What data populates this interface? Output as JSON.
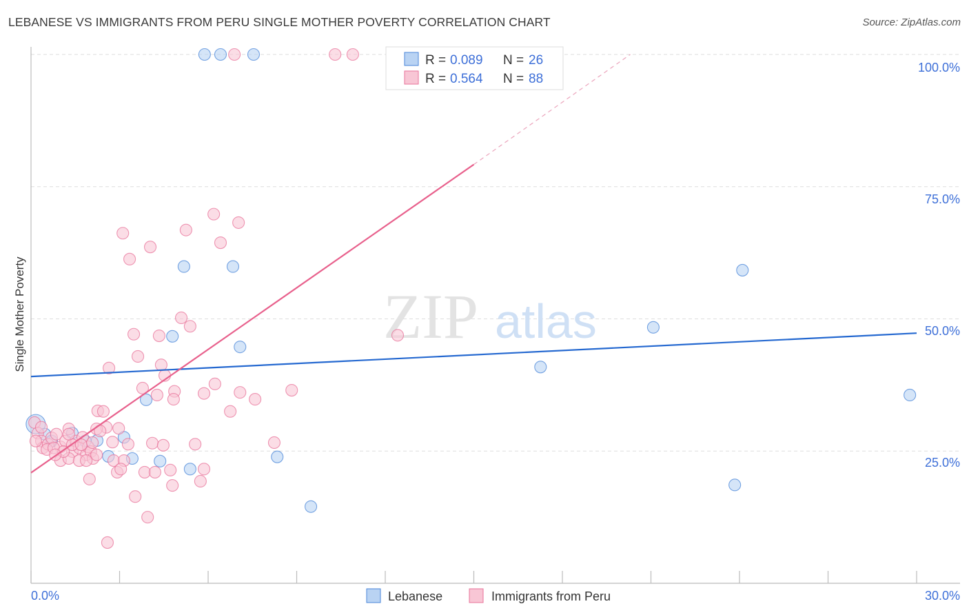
{
  "title": "LEBANESE VS IMMIGRANTS FROM PERU SINGLE MOTHER POVERTY CORRELATION CHART",
  "source": "Source: ZipAtlas.com",
  "watermark": {
    "zip": "ZIP",
    "atlas": "atlas"
  },
  "chart_data": {
    "type": "scatter",
    "title": "LEBANESE VS IMMIGRANTS FROM PERU SINGLE MOTHER POVERTY CORRELATION CHART",
    "xlabel": "",
    "ylabel": "Single Mother Poverty",
    "xlim": [
      0,
      30
    ],
    "ylim": [
      0,
      100
    ],
    "x_tick_labels": [
      "0.0%",
      "30.0%"
    ],
    "y_ticks": [
      25,
      50,
      75,
      100
    ],
    "y_tick_labels": [
      "25.0%",
      "50.0%",
      "75.0%",
      "100.0%"
    ],
    "grid": true,
    "legend_placement": "top-center",
    "legend_stats": [
      {
        "r_label": "R = ",
        "r": "0.089",
        "n_label": "N = ",
        "n": "26"
      },
      {
        "r_label": "R = ",
        "r": "0.564",
        "n_label": "N = ",
        "n": "88"
      }
    ],
    "series": [
      {
        "name": "Lebanese",
        "color": "#4a86d8",
        "fill": "#b9d3f3",
        "trend": {
          "x": [
            0,
            30
          ],
          "y": [
            39.1,
            47.3
          ]
        },
        "points": [
          [
            5.88,
            100
          ],
          [
            6.42,
            100
          ],
          [
            7.54,
            100
          ],
          [
            0.16,
            30.1
          ],
          [
            1.4,
            28.4
          ],
          [
            1.84,
            26.9
          ],
          [
            2.24,
            27.0
          ],
          [
            2.62,
            24.0
          ],
          [
            3.15,
            27.6
          ],
          [
            3.43,
            23.6
          ],
          [
            3.9,
            34.7
          ],
          [
            4.37,
            23.1
          ],
          [
            4.79,
            46.7
          ],
          [
            5.18,
            59.9
          ],
          [
            5.39,
            21.6
          ],
          [
            6.84,
            59.9
          ],
          [
            7.08,
            44.7
          ],
          [
            8.34,
            23.9
          ],
          [
            9.48,
            14.5
          ],
          [
            17.26,
            40.9
          ],
          [
            21.08,
            48.4
          ],
          [
            24.1,
            59.2
          ],
          [
            23.84,
            18.6
          ],
          [
            29.77,
            35.6
          ],
          [
            0.47,
            28.2
          ],
          [
            0.7,
            26.9
          ]
        ]
      },
      {
        "name": "Immigrants from Peru",
        "color": "#e8739a",
        "fill": "#f8c6d5",
        "trend": {
          "x": [
            0,
            15.0
          ],
          "y": [
            20.9,
            79.2
          ],
          "dashed_to": [
            20.3,
            100
          ]
        },
        "points": [
          [
            6.89,
            100
          ],
          [
            10.3,
            100
          ],
          [
            10.9,
            100
          ],
          [
            3.11,
            66.2
          ],
          [
            3.34,
            61.3
          ],
          [
            4.04,
            63.6
          ],
          [
            5.25,
            66.8
          ],
          [
            6.19,
            69.8
          ],
          [
            6.42,
            64.4
          ],
          [
            7.03,
            68.2
          ],
          [
            5.09,
            50.2
          ],
          [
            5.39,
            48.6
          ],
          [
            3.48,
            47.1
          ],
          [
            4.34,
            46.8
          ],
          [
            3.62,
            42.9
          ],
          [
            4.41,
            41.3
          ],
          [
            4.53,
            39.3
          ],
          [
            2.64,
            40.7
          ],
          [
            3.78,
            36.9
          ],
          [
            4.27,
            35.6
          ],
          [
            4.86,
            36.3
          ],
          [
            4.83,
            34.8
          ],
          [
            5.86,
            35.9
          ],
          [
            6.23,
            37.7
          ],
          [
            7.08,
            36.1
          ],
          [
            7.59,
            34.8
          ],
          [
            8.83,
            36.5
          ],
          [
            6.75,
            32.5
          ],
          [
            12.42,
            46.9
          ],
          [
            2.26,
            32.6
          ],
          [
            2.45,
            32.5
          ],
          [
            2.55,
            29.5
          ],
          [
            2.97,
            29.3
          ],
          [
            2.22,
            29.2
          ],
          [
            3.29,
            26.3
          ],
          [
            2.76,
            26.7
          ],
          [
            4.11,
            26.5
          ],
          [
            4.48,
            26.1
          ],
          [
            5.56,
            26.3
          ],
          [
            8.24,
            26.6
          ],
          [
            0.12,
            30.4
          ],
          [
            0.23,
            28.4
          ],
          [
            0.35,
            26.9
          ],
          [
            0.4,
            25.6
          ],
          [
            0.58,
            26.3
          ],
          [
            0.7,
            27.5
          ],
          [
            0.86,
            28.2
          ],
          [
            1.0,
            25.8
          ],
          [
            1.17,
            26.9
          ],
          [
            1.28,
            29.2
          ],
          [
            1.4,
            24.9
          ],
          [
            1.52,
            26.9
          ],
          [
            1.63,
            25.6
          ],
          [
            1.75,
            27.6
          ],
          [
            1.87,
            24.3
          ],
          [
            1.94,
            25.8
          ],
          [
            2.03,
            24.9
          ],
          [
            2.1,
            23.6
          ],
          [
            1.0,
            23.2
          ],
          [
            0.54,
            25.3
          ],
          [
            1.28,
            23.6
          ],
          [
            1.63,
            23.2
          ],
          [
            1.87,
            23.2
          ],
          [
            2.8,
            23.2
          ],
          [
            3.15,
            23.2
          ],
          [
            2.92,
            21.0
          ],
          [
            3.04,
            21.6
          ],
          [
            3.85,
            21.0
          ],
          [
            4.2,
            21.0
          ],
          [
            4.72,
            21.4
          ],
          [
            5.86,
            21.6
          ],
          [
            1.98,
            19.7
          ],
          [
            3.53,
            16.4
          ],
          [
            4.79,
            18.5
          ],
          [
            5.74,
            19.3
          ],
          [
            3.95,
            12.5
          ],
          [
            2.59,
            7.7
          ],
          [
            0.16,
            26.9
          ],
          [
            0.35,
            29.5
          ],
          [
            0.77,
            25.6
          ],
          [
            1.1,
            24.9
          ],
          [
            1.4,
            26.2
          ],
          [
            2.34,
            28.8
          ],
          [
            1.7,
            26.2
          ],
          [
            2.08,
            26.6
          ],
          [
            2.22,
            24.3
          ],
          [
            1.28,
            28.2
          ],
          [
            0.82,
            24.3
          ]
        ]
      }
    ]
  }
}
